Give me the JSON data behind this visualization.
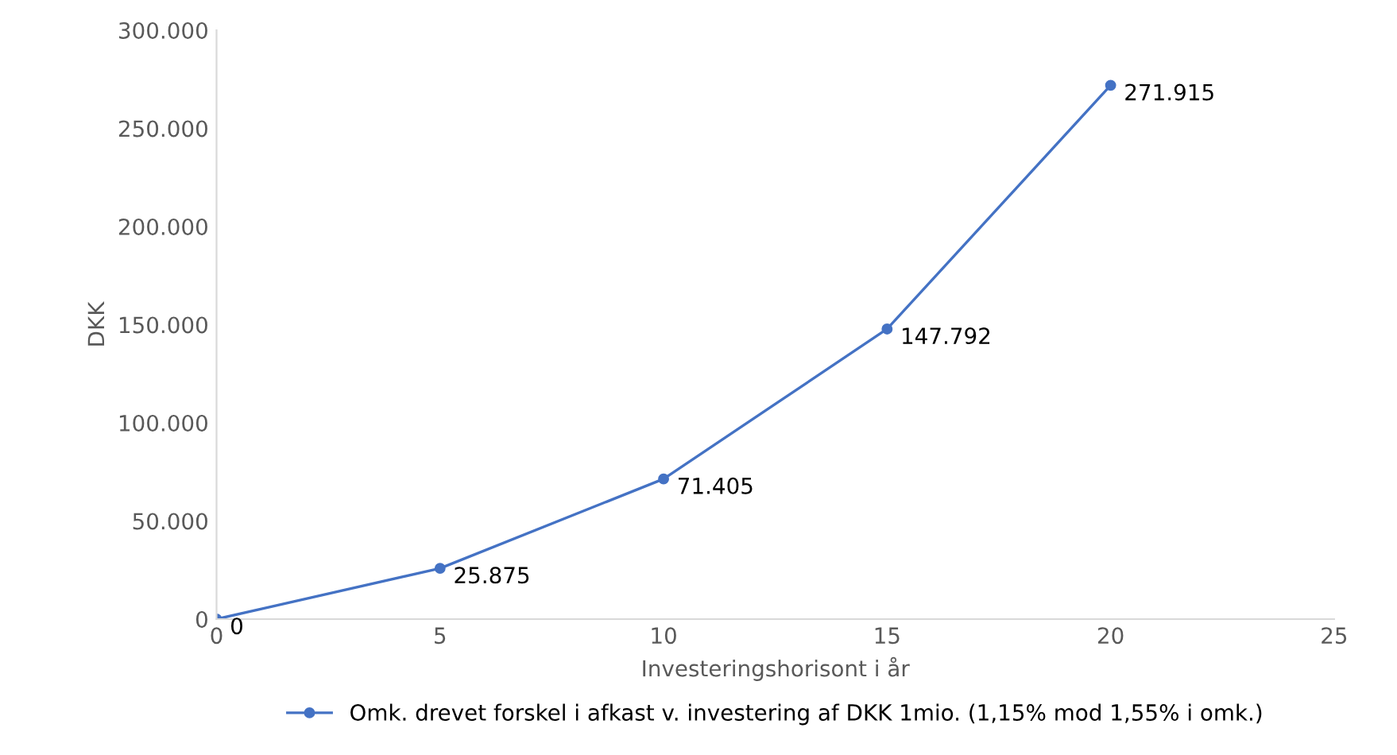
{
  "chart_data": {
    "type": "line",
    "xlabel": "Investeringshorisont i år",
    "ylabel": "DKK",
    "x": [
      0,
      5,
      10,
      15,
      20
    ],
    "series": [
      {
        "name": "Omk. drevet forskel i afkast v. investering af DKK 1mio. (1,15% mod 1,55% i omk.)",
        "color": "#4472c4",
        "values": [
          0,
          25875,
          71405,
          147792,
          271915
        ],
        "value_labels": [
          "0",
          "25.875",
          "71.405",
          "147.792",
          "271.915"
        ]
      }
    ],
    "xlim": [
      0,
      25
    ],
    "xticks": [
      0,
      5,
      10,
      15,
      20,
      25
    ],
    "ylim": [
      0,
      300000
    ],
    "yticks": [
      {
        "value": 0,
        "label": "0"
      },
      {
        "value": 50000,
        "label": "50.000"
      },
      {
        "value": 100000,
        "label": "100.000"
      },
      {
        "value": 150000,
        "label": "150.000"
      },
      {
        "value": 200000,
        "label": "200.000"
      },
      {
        "value": 250000,
        "label": "250.000"
      },
      {
        "value": 300000,
        "label": "300.000"
      }
    ],
    "grid": false,
    "legend": "bottom",
    "marker": "circle",
    "line_style": "solid"
  }
}
